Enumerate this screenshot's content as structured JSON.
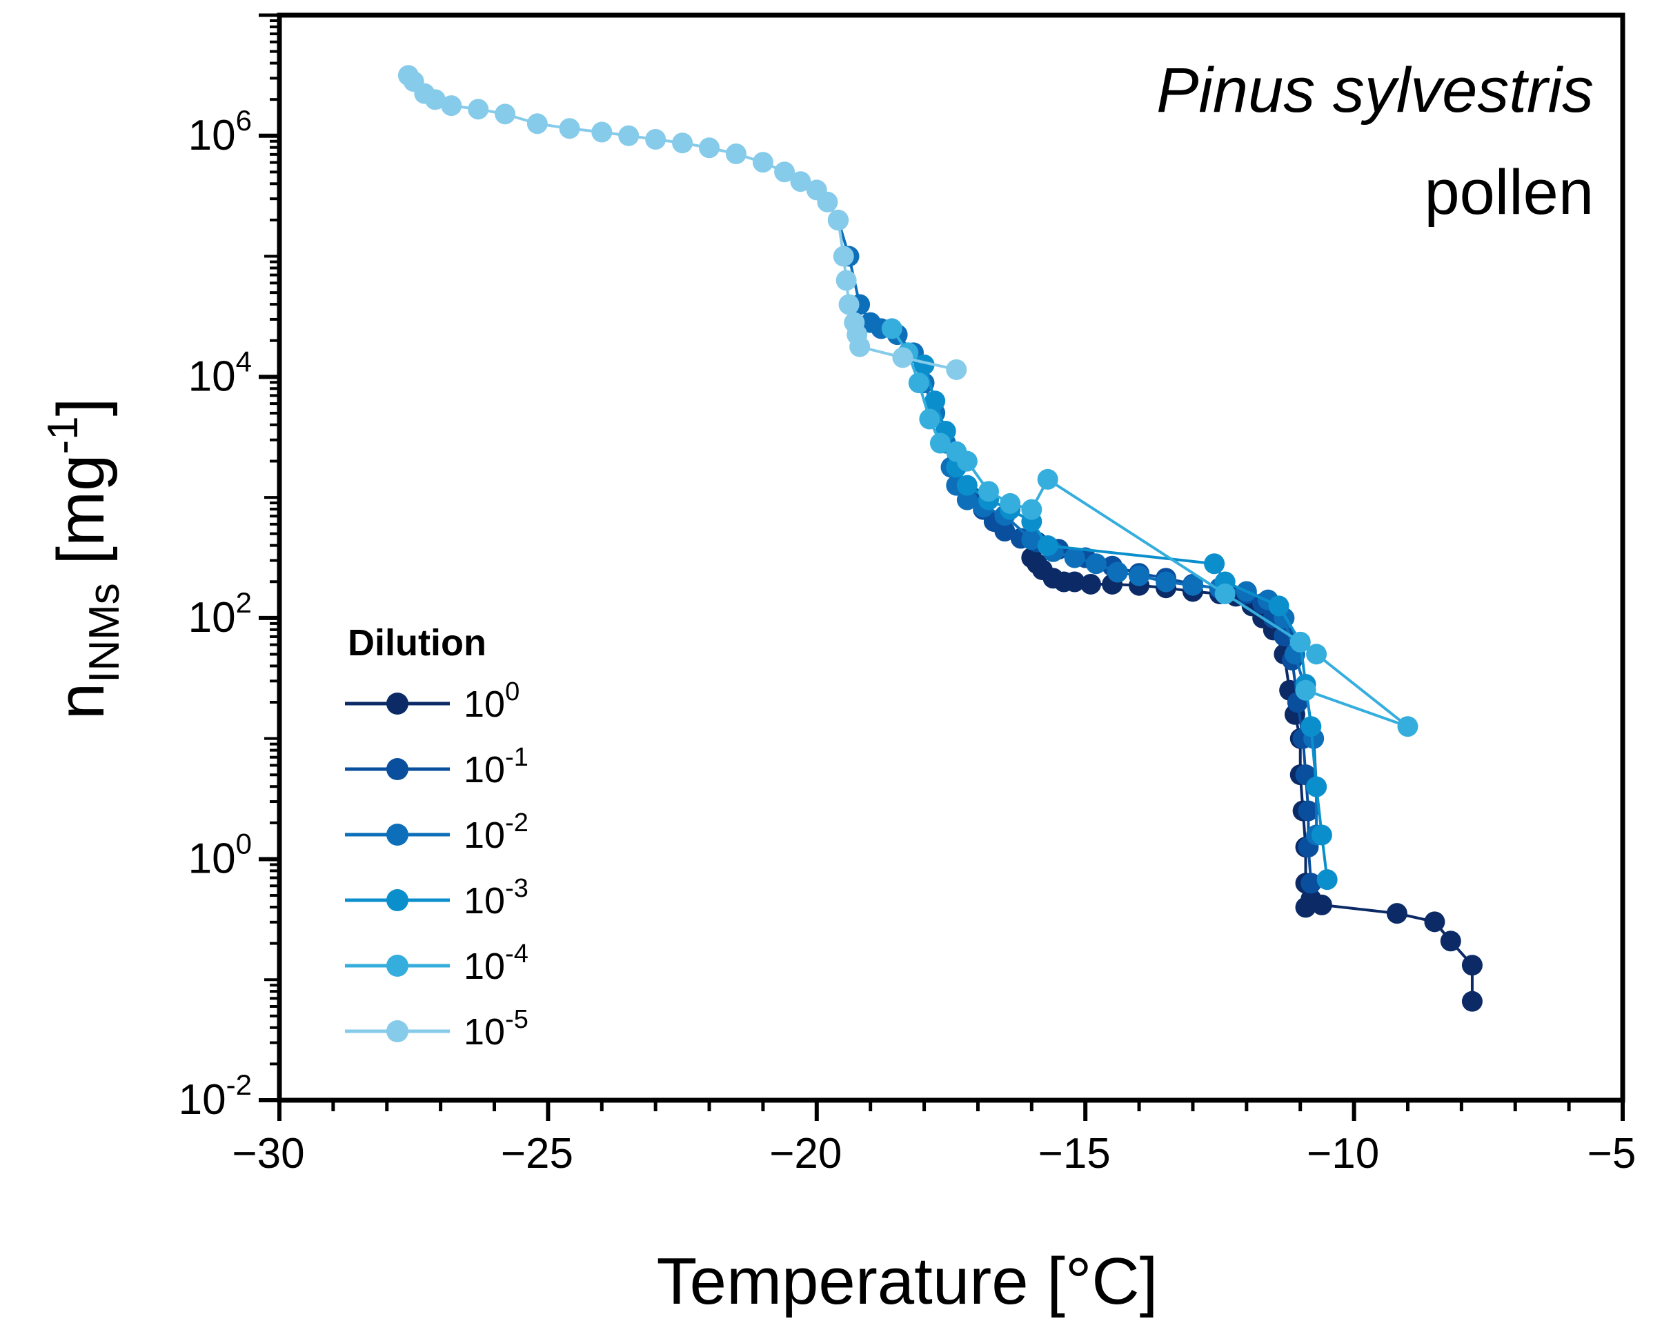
{
  "chart_data": {
    "type": "scatter",
    "title": "",
    "annotation": {
      "species": "Pinus sylvestris",
      "material": "pollen"
    },
    "xlabel": "Temperature [°C]",
    "ylabel": {
      "base": "n",
      "subscript": "INMs",
      "rest": " [mg",
      "superscript": "-1",
      "close": "]"
    },
    "xlim": [
      -30,
      -5
    ],
    "ylim_log10": [
      -2,
      7
    ],
    "x_ticks": [
      {
        "value": -30,
        "label": "−30"
      },
      {
        "value": -25,
        "label": "−25"
      },
      {
        "value": -20,
        "label": "−20"
      },
      {
        "value": -15,
        "label": "−15"
      },
      {
        "value": -10,
        "label": "−10"
      },
      {
        "value": -5,
        "label": "−5"
      }
    ],
    "y_ticks": [
      {
        "exp": -2,
        "base": "10",
        "sup": "-2"
      },
      {
        "exp": 0,
        "base": "10",
        "sup": "0"
      },
      {
        "exp": 2,
        "base": "10",
        "sup": "2"
      },
      {
        "exp": 4,
        "base": "10",
        "sup": "4"
      },
      {
        "exp": 6,
        "base": "10",
        "sup": "6"
      }
    ],
    "legend": {
      "title": "Dilution",
      "position": "lower-left",
      "entries": [
        {
          "base": "10",
          "sup": "0"
        },
        {
          "base": "10",
          "sup": "-1"
        },
        {
          "base": "10",
          "sup": "-2"
        },
        {
          "base": "10",
          "sup": "-3"
        },
        {
          "base": "10",
          "sup": "-4"
        },
        {
          "base": "10",
          "sup": "-5"
        }
      ]
    },
    "series": [
      {
        "name": "10^0",
        "color": "#0b2a66",
        "points": [
          [
            -16.0,
            2.5
          ],
          [
            -15.9,
            2.45
          ],
          [
            -15.8,
            2.4
          ],
          [
            -15.6,
            2.33
          ],
          [
            -15.4,
            2.3
          ],
          [
            -15.2,
            2.3
          ],
          [
            -14.9,
            2.28
          ],
          [
            -14.5,
            2.28
          ],
          [
            -14.0,
            2.27
          ],
          [
            -13.5,
            2.25
          ],
          [
            -13.0,
            2.22
          ],
          [
            -12.5,
            2.2
          ],
          [
            -12.2,
            2.18
          ],
          [
            -11.9,
            2.1
          ],
          [
            -11.7,
            2.0
          ],
          [
            -11.5,
            1.9
          ],
          [
            -11.3,
            1.7
          ],
          [
            -11.2,
            1.4
          ],
          [
            -11.1,
            1.2
          ],
          [
            -11.0,
            1.0
          ],
          [
            -11.0,
            0.7
          ],
          [
            -10.95,
            0.4
          ],
          [
            -10.9,
            0.1
          ],
          [
            -10.9,
            -0.2
          ],
          [
            -10.9,
            -0.4
          ],
          [
            -10.8,
            -0.33
          ],
          [
            -10.6,
            -0.38
          ],
          [
            -9.2,
            -0.45
          ],
          [
            -8.5,
            -0.52
          ],
          [
            -8.2,
            -0.68
          ],
          [
            -7.8,
            -0.88
          ],
          [
            -7.8,
            -1.18
          ]
        ]
      },
      {
        "name": "10^-1",
        "color": "#0a4f9e",
        "points": [
          [
            -17.1,
            3.0
          ],
          [
            -16.9,
            2.9
          ],
          [
            -16.7,
            2.8
          ],
          [
            -16.5,
            2.72
          ],
          [
            -16.2,
            2.66
          ],
          [
            -15.9,
            2.63
          ],
          [
            -15.5,
            2.57
          ],
          [
            -15.0,
            2.5
          ],
          [
            -14.5,
            2.43
          ],
          [
            -14.0,
            2.37
          ],
          [
            -13.5,
            2.33
          ],
          [
            -13.0,
            2.28
          ],
          [
            -12.5,
            2.24
          ],
          [
            -12.0,
            2.2
          ],
          [
            -11.7,
            2.12
          ],
          [
            -11.5,
            2.0
          ],
          [
            -11.3,
            1.85
          ],
          [
            -11.15,
            1.65
          ],
          [
            -11.05,
            1.3
          ],
          [
            -10.95,
            1.0
          ],
          [
            -10.9,
            0.7
          ],
          [
            -10.85,
            0.4
          ],
          [
            -10.85,
            0.1
          ],
          [
            -10.8,
            -0.2
          ]
        ]
      },
      {
        "name": "10^-2",
        "color": "#0d6fba",
        "points": [
          [
            -19.6,
            5.3
          ],
          [
            -19.4,
            5.0
          ],
          [
            -19.2,
            4.6
          ],
          [
            -19.0,
            4.45
          ],
          [
            -18.8,
            4.4
          ],
          [
            -18.5,
            4.35
          ],
          [
            -18.2,
            4.2
          ],
          [
            -18.0,
            3.95
          ],
          [
            -17.8,
            3.7
          ],
          [
            -17.6,
            3.45
          ],
          [
            -17.5,
            3.25
          ],
          [
            -17.4,
            3.1
          ],
          [
            -17.2,
            2.98
          ],
          [
            -16.9,
            2.92
          ],
          [
            -16.5,
            2.85
          ],
          [
            -16.0,
            2.65
          ],
          [
            -15.6,
            2.55
          ],
          [
            -15.2,
            2.5
          ],
          [
            -14.8,
            2.45
          ],
          [
            -14.4,
            2.38
          ],
          [
            -14.0,
            2.35
          ],
          [
            -13.5,
            2.3
          ],
          [
            -13.0,
            2.27
          ],
          [
            -12.5,
            2.25
          ],
          [
            -12.0,
            2.22
          ],
          [
            -11.6,
            2.15
          ],
          [
            -11.3,
            2.0
          ],
          [
            -11.1,
            1.7
          ],
          [
            -10.9,
            1.4
          ],
          [
            -10.75,
            1.0
          ],
          [
            -10.7,
            0.6
          ],
          [
            -10.7,
            0.2
          ]
        ]
      },
      {
        "name": "10^-3",
        "color": "#0b8fcc",
        "points": [
          [
            -18.0,
            4.1
          ],
          [
            -17.8,
            3.8
          ],
          [
            -17.6,
            3.55
          ],
          [
            -17.4,
            3.25
          ],
          [
            -17.2,
            3.1
          ],
          [
            -16.8,
            2.98
          ],
          [
            -16.4,
            2.9
          ],
          [
            -16.0,
            2.8
          ],
          [
            -15.7,
            2.6
          ],
          [
            -12.6,
            2.45
          ],
          [
            -12.4,
            2.3
          ],
          [
            -11.4,
            2.1
          ],
          [
            -11.0,
            1.8
          ],
          [
            -10.9,
            1.45
          ],
          [
            -10.8,
            1.1
          ],
          [
            -10.7,
            0.6
          ],
          [
            -10.6,
            0.2
          ],
          [
            -10.5,
            -0.17
          ]
        ]
      },
      {
        "name": "10^-4",
        "color": "#35aedd",
        "points": [
          [
            -18.6,
            4.4
          ],
          [
            -18.3,
            4.2
          ],
          [
            -18.1,
            3.95
          ],
          [
            -17.9,
            3.65
          ],
          [
            -17.7,
            3.45
          ],
          [
            -17.4,
            3.38
          ],
          [
            -17.2,
            3.3
          ],
          [
            -16.8,
            3.05
          ],
          [
            -16.4,
            2.95
          ],
          [
            -16.0,
            2.9
          ],
          [
            -15.7,
            3.15
          ],
          [
            -12.4,
            2.2
          ],
          [
            -11.0,
            1.8
          ],
          [
            -10.7,
            1.7
          ],
          [
            -9.0,
            1.1
          ],
          [
            -10.9,
            1.4
          ]
        ]
      },
      {
        "name": "10^-5",
        "color": "#86cbea",
        "points": [
          [
            -27.6,
            6.5
          ],
          [
            -27.5,
            6.45
          ],
          [
            -27.3,
            6.35
          ],
          [
            -27.1,
            6.3
          ],
          [
            -26.8,
            6.25
          ],
          [
            -26.3,
            6.22
          ],
          [
            -25.8,
            6.18
          ],
          [
            -25.2,
            6.1
          ],
          [
            -24.6,
            6.06
          ],
          [
            -24.0,
            6.03
          ],
          [
            -23.5,
            6.0
          ],
          [
            -23.0,
            5.97
          ],
          [
            -22.5,
            5.94
          ],
          [
            -22.0,
            5.9
          ],
          [
            -21.5,
            5.85
          ],
          [
            -21.0,
            5.78
          ],
          [
            -20.6,
            5.7
          ],
          [
            -20.3,
            5.62
          ],
          [
            -20.0,
            5.55
          ],
          [
            -19.8,
            5.45
          ],
          [
            -19.6,
            5.3
          ],
          [
            -19.5,
            5.0
          ],
          [
            -19.45,
            4.8
          ],
          [
            -19.4,
            4.6
          ],
          [
            -19.3,
            4.45
          ],
          [
            -19.25,
            4.35
          ],
          [
            -19.2,
            4.25
          ],
          [
            -18.4,
            4.16
          ],
          [
            -17.4,
            4.06
          ]
        ]
      }
    ]
  }
}
